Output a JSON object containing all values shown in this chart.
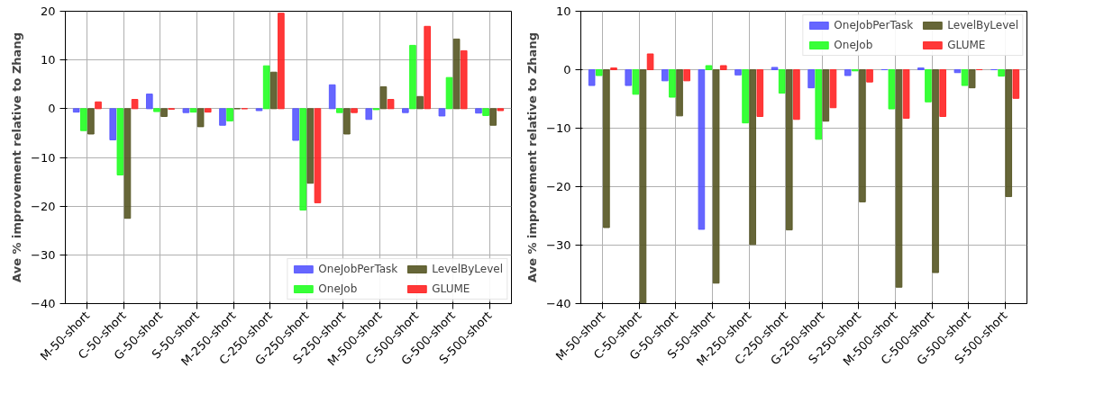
{
  "chart_data": [
    {
      "type": "bar",
      "ylabel": "Ave % improvement relative to Zhang",
      "categories": [
        "M-50-short",
        "C-50-short",
        "G-50-short",
        "S-50-short",
        "M-250-short",
        "C-250-short",
        "G-250-short",
        "S-250-short",
        "M-500-short",
        "C-500-short",
        "G-500-short",
        "S-500-short"
      ],
      "series": [
        {
          "name": "OneJobPerTask",
          "color": "#5555ff",
          "values": [
            -0.7,
            -6.4,
            3.0,
            -0.8,
            -3.4,
            -0.4,
            -6.5,
            4.9,
            -2.2,
            -0.8,
            -1.5,
            -0.9
          ]
        },
        {
          "name": "OneJob",
          "color": "#22ff22",
          "values": [
            -4.5,
            -13.6,
            -0.6,
            -0.7,
            -2.5,
            8.8,
            -20.8,
            -0.8,
            -0.2,
            13.0,
            6.4,
            -1.4
          ]
        },
        {
          "name": "LevelByLevel",
          "color": "#555522",
          "values": [
            -5.2,
            -22.5,
            -1.6,
            -3.7,
            0,
            7.5,
            -15.3,
            -5.2,
            4.5,
            2.5,
            14.3,
            -3.4
          ]
        },
        {
          "name": "GLUME",
          "color": "#ff2222",
          "values": [
            1.4,
            1.9,
            -0.1,
            -0.7,
            0,
            19.6,
            -19.3,
            -0.8,
            1.9,
            16.9,
            11.9,
            -0.4
          ]
        }
      ],
      "ylim": [
        -40,
        20
      ],
      "yticks": [
        -40,
        -30,
        -20,
        -10,
        0,
        10,
        20
      ],
      "grid": true,
      "legend": "bottom right"
    },
    {
      "type": "bar",
      "ylabel": "Ave % improvement relative to Zhang",
      "categories": [
        "M-50-short",
        "C-50-short",
        "G-50-short",
        "S-50-short",
        "M-250-short",
        "C-250-short",
        "G-250-short",
        "S-250-short",
        "M-500-short",
        "C-500-short",
        "G-500-short",
        "S-500-short"
      ],
      "series": [
        {
          "name": "OneJobPerTask",
          "color": "#5555ff",
          "values": [
            -2.7,
            -2.7,
            -1.9,
            -27.3,
            -0.9,
            0.4,
            -3.1,
            -1.0,
            0,
            0.3,
            -0.5,
            0
          ]
        },
        {
          "name": "OneJob",
          "color": "#22ff22",
          "values": [
            -1.0,
            -4.2,
            -4.7,
            0.7,
            -9.1,
            -4.0,
            -11.9,
            -0.2,
            -6.7,
            -5.5,
            -2.7,
            -1.1
          ]
        },
        {
          "name": "LevelByLevel",
          "color": "#555522",
          "values": [
            -27.0,
            -40,
            -7.9,
            -36.5,
            -29.9,
            -27.4,
            -8.8,
            -22.6,
            -37.2,
            -34.7,
            -3.1,
            -21.7
          ]
        },
        {
          "name": "GLUME",
          "color": "#ff2222",
          "values": [
            0.3,
            2.7,
            -1.9,
            0.7,
            -8.0,
            -8.5,
            -6.5,
            -2.1,
            -8.3,
            -8.0,
            0,
            -4.9
          ]
        }
      ],
      "ylim": [
        -40,
        10
      ],
      "yticks": [
        -40,
        -30,
        -20,
        -10,
        0,
        10
      ],
      "grid": true,
      "legend": "top right"
    }
  ]
}
